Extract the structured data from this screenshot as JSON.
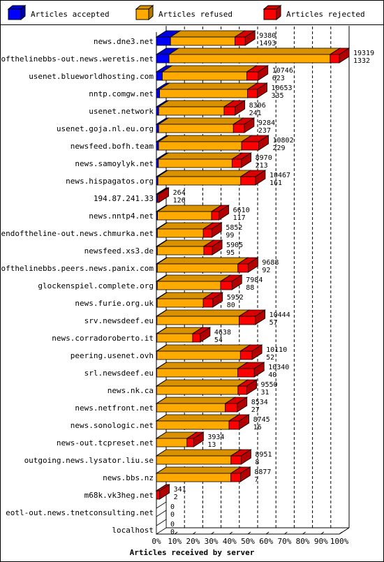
{
  "chart_data": {
    "type": "bar",
    "orientation": "horizontal",
    "stacked": true,
    "style": "3d",
    "legend_position": "top",
    "title": "",
    "xlabel": "Articles received by server",
    "ylabel": "",
    "xlim": [
      0,
      100
    ],
    "x_ticks": [
      "0%",
      "10%",
      "20%",
      "30%",
      "40%",
      "50%",
      "60%",
      "70%",
      "80%",
      "90%",
      "100%"
    ],
    "grid": "dashed vertical",
    "colors": {
      "accepted": "#0000ff",
      "refused": "#ffaa00",
      "rejected": "#ff0000",
      "axis": "#000000",
      "background": "#ffffff"
    },
    "series": [
      {
        "name": "Articles accepted",
        "key": "accepted"
      },
      {
        "name": "Articles refused",
        "key": "refused"
      },
      {
        "name": "Articles rejected",
        "key": "rejected"
      }
    ],
    "categories": [
      "news.dne3.net",
      "endofthelinebbs-out.news.weretis.net",
      "usenet.blueworldhosting.com",
      "nntp.comgw.net",
      "usenet.network",
      "usenet.goja.nl.eu.org",
      "newsfeed.bofh.team",
      "news.samoylyk.net",
      "news.hispagatos.org",
      "194.87.241.33",
      "news.nntp4.net",
      "endoftheline-out.news.chmurka.net",
      "newsfeed.xs3.de",
      "endofthelinebbs.peers.news.panix.com",
      "glockenspiel.complete.org",
      "news.furie.org.uk",
      "srv.newsdeef.eu",
      "news.corradoroberto.it",
      "peering.usenet.ovh",
      "srl.newsdeef.eu",
      "news.nk.ca",
      "news.netfront.net",
      "news.sonologic.net",
      "news-out.tcpreset.net",
      "outgoing.news.lysator.liu.se",
      "news.bbs.nz",
      "m68k.vk3heg.net",
      "eotl-out.news.tnetconsulting.net",
      "localhost"
    ],
    "totals": [
      "9380",
      "19319",
      "10746",
      "10653",
      "8306",
      "9284",
      "10802",
      "8970",
      "10467",
      "264",
      "6610",
      "5852",
      "5905",
      "9688",
      "7984",
      "5952",
      "10444",
      "4638",
      "10110",
      "10340",
      "9550",
      "8534",
      "8745",
      "3934",
      "8951",
      "8877",
      "341",
      "0",
      "0"
    ],
    "accepted_counts": [
      "1493",
      "1332",
      "623",
      "335",
      "241",
      "237",
      "229",
      "213",
      "161",
      "126",
      "117",
      "99",
      "95",
      "92",
      "88",
      "80",
      "57",
      "54",
      "52",
      "40",
      "31",
      "27",
      "16",
      "13",
      "8",
      "7",
      "2",
      "0",
      "0"
    ],
    "accepted": [
      1493,
      1332,
      623,
      335,
      241,
      237,
      229,
      213,
      161,
      126,
      117,
      99,
      95,
      92,
      88,
      80,
      57,
      54,
      52,
      40,
      31,
      27,
      16,
      13,
      8,
      7,
      2,
      0,
      0
    ],
    "refused": [
      6800,
      17017,
      8923,
      9293,
      6906,
      7894,
      8773,
      7777,
      8746,
      0,
      5713,
      4856,
      4911,
      8518,
      6696,
      4872,
      8687,
      3772,
      8818,
      8550,
      8584,
      7252,
      7659,
      3216,
      7867,
      7860,
      0,
      0,
      0
    ],
    "rejected": [
      1087,
      970,
      1200,
      1025,
      1159,
      1153,
      1800,
      980,
      1560,
      138,
      780,
      897,
      899,
      1078,
      1200,
      1000,
      1700,
      812,
      1240,
      1750,
      935,
      1255,
      1070,
      705,
      1076,
      1010,
      339,
      0,
      0
    ]
  }
}
